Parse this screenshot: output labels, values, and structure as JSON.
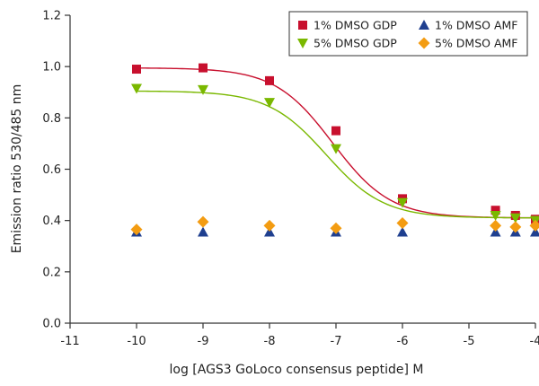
{
  "chart_data": {
    "type": "scatter",
    "title": "",
    "xlabel": "log [AGS3 GoLoco consensus peptide] M",
    "ylabel": "Emission ratio 530/485 nm",
    "xlim": [
      -11,
      -4
    ],
    "ylim": [
      0.0,
      1.2
    ],
    "xticks": [
      "-11",
      "-10",
      "-9",
      "-8",
      "-7",
      "-6",
      "-5",
      "-4"
    ],
    "yticks": [
      "0.0",
      "0.2",
      "0.4",
      "0.6",
      "0.8",
      "1.0",
      "1.2"
    ],
    "grid": false,
    "legend_position": "top-right",
    "series": [
      {
        "name": "1% DMSO GDP",
        "marker": "square",
        "color": "#c8102e",
        "fit": true,
        "fit_params": {
          "top": 0.995,
          "bottom": 0.41,
          "logEC50": -7.05,
          "hill": 1.0
        },
        "x": [
          -10,
          -9,
          -8,
          -7,
          -6,
          -4.6,
          -4.3,
          -4
        ],
        "y": [
          0.99,
          0.995,
          0.945,
          0.75,
          0.485,
          0.44,
          0.42,
          0.405
        ]
      },
      {
        "name": "1% DMSO AMF",
        "marker": "triangle-up",
        "color": "#1f3f8f",
        "fit": false,
        "x": [
          -10,
          -9,
          -8,
          -7,
          -6,
          -4.6,
          -4.3,
          -4
        ],
        "y": [
          0.355,
          0.355,
          0.355,
          0.355,
          0.355,
          0.355,
          0.355,
          0.355
        ]
      },
      {
        "name": "5% DMSO GDP",
        "marker": "triangle-down",
        "color": "#7ab800",
        "fit": true,
        "fit_params": {
          "top": 0.905,
          "bottom": 0.41,
          "logEC50": -7.15,
          "hill": 1.0
        },
        "x": [
          -10,
          -9,
          -8,
          -7,
          -6,
          -4.6,
          -4.3,
          -4
        ],
        "y": [
          0.915,
          0.91,
          0.86,
          0.68,
          0.47,
          0.42,
          0.41,
          0.4
        ]
      },
      {
        "name": "5% DMSO AMF",
        "marker": "diamond",
        "color": "#f39c12",
        "fit": false,
        "x": [
          -10,
          -9,
          -8,
          -7,
          -6,
          -4.6,
          -4.3,
          -4
        ],
        "y": [
          0.365,
          0.395,
          0.38,
          0.37,
          0.39,
          0.38,
          0.375,
          0.38
        ]
      }
    ]
  }
}
